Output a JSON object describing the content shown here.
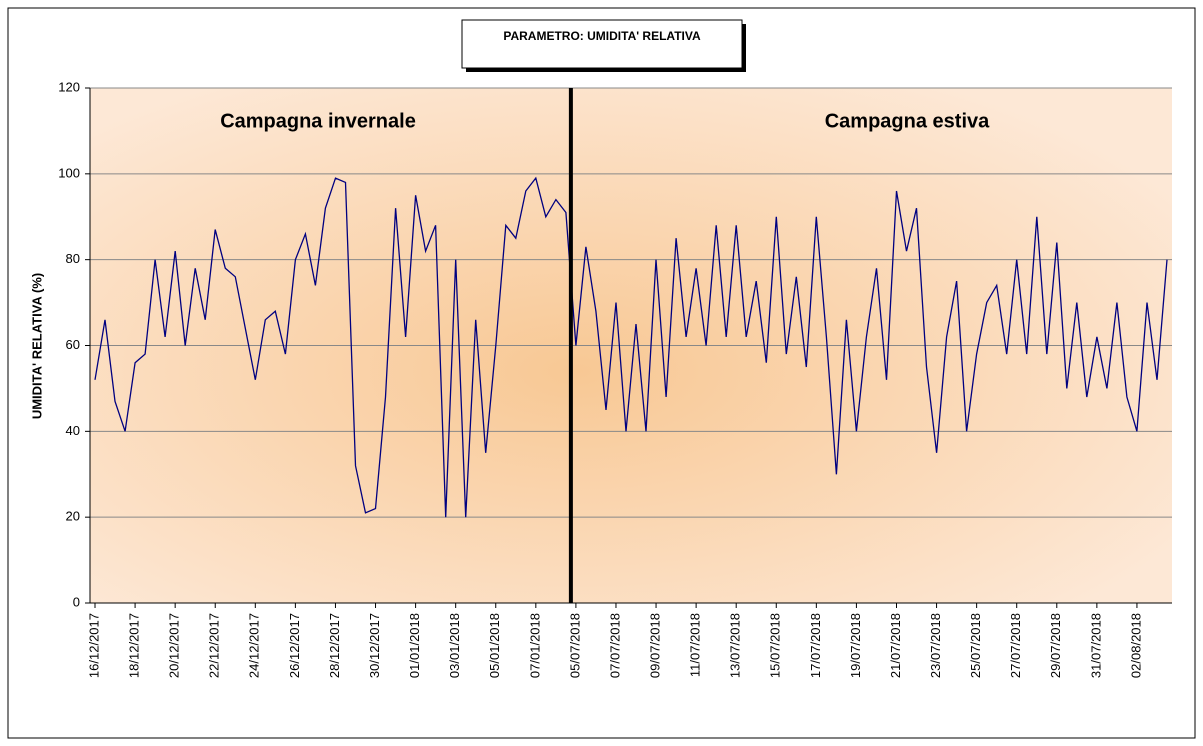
{
  "chart_data": {
    "type": "line",
    "title": "PARAMETRO: UMIDITA' RELATIVA",
    "y_label": "UMIDITA' RELATIVA (%)",
    "annotations": [
      {
        "text": "Campagna invernale",
        "color": "#1a1aff"
      },
      {
        "text": "Campagna estiva",
        "color": "#ff1a1a"
      }
    ],
    "categories": [
      "16/12/2017",
      null,
      null,
      null,
      "18/12/2017",
      null,
      null,
      null,
      "20/12/2017",
      null,
      null,
      null,
      "22/12/2017",
      null,
      null,
      null,
      "24/12/2017",
      null,
      null,
      null,
      "26/12/2017",
      null,
      null,
      null,
      "28/12/2017",
      null,
      null,
      null,
      "30/12/2017",
      null,
      null,
      null,
      "01/01/2018",
      null,
      null,
      null,
      "03/01/2018",
      null,
      null,
      null,
      "05/01/2018",
      null,
      null,
      null,
      "07/01/2018",
      null,
      null,
      null,
      "05/07/2018",
      null,
      null,
      null,
      "07/07/2018",
      null,
      null,
      null,
      "09/07/2018",
      null,
      null,
      null,
      "11/07/2018",
      null,
      null,
      null,
      "13/07/2018",
      null,
      null,
      null,
      "15/07/2018",
      null,
      null,
      null,
      "17/07/2018",
      null,
      null,
      null,
      "19/07/2018",
      null,
      null,
      null,
      "21/07/2018",
      null,
      null,
      null,
      "23/07/2018",
      null,
      null,
      null,
      "25/07/2018",
      null,
      null,
      null,
      "27/07/2018",
      null,
      null,
      null,
      "29/07/2018",
      null,
      null,
      null,
      "31/07/2018",
      null,
      null,
      null,
      "02/08/2018",
      null,
      null,
      null
    ],
    "series": [
      {
        "color": "#000080",
        "values": [
          52,
          66,
          47,
          40,
          56,
          58,
          80,
          62,
          82,
          60,
          78,
          66,
          87,
          78,
          76,
          64,
          52,
          66,
          68,
          58,
          80,
          86,
          74,
          92,
          99,
          98,
          32,
          21,
          22,
          48,
          92,
          62,
          95,
          82,
          88,
          20,
          80,
          20,
          66,
          35,
          60,
          88,
          85,
          96,
          99,
          90,
          94,
          91,
          60,
          83,
          68,
          45,
          70,
          40,
          65,
          40,
          80,
          48,
          85,
          62,
          78,
          60,
          88,
          62,
          88,
          62,
          75,
          56,
          90,
          58,
          76,
          55,
          90,
          62,
          30,
          66,
          40,
          62,
          78,
          52,
          96,
          82,
          92,
          55,
          35,
          62,
          75,
          40,
          58,
          70,
          74,
          58,
          80,
          58,
          90,
          58,
          84,
          50,
          70,
          48,
          62,
          50,
          70,
          48,
          40,
          70,
          52,
          80
        ]
      }
    ],
    "ylim": [
      0,
      120
    ],
    "yticks": [
      0,
      20,
      40,
      60,
      80,
      100,
      120
    ],
    "grid": true
  }
}
